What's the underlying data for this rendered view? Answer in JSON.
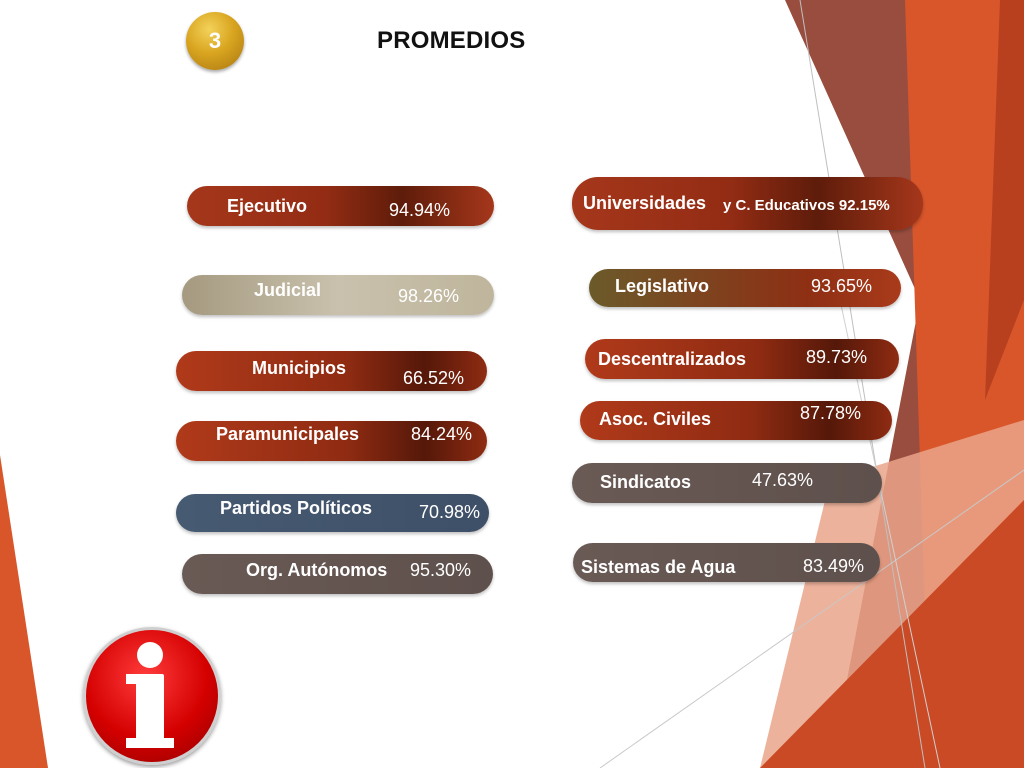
{
  "slide": {
    "number": "3",
    "title": "PROMEDIOS"
  },
  "left_column": [
    {
      "label": "Ejecutivo",
      "value": "94.94%"
    },
    {
      "label": "Judicial",
      "value": "98.26%"
    },
    {
      "label": "Municipios",
      "value": "66.52%"
    },
    {
      "label": "Paramunicipales",
      "value": "84.24%"
    },
    {
      "label": "Partidos Políticos",
      "value": "70.98%"
    },
    {
      "label": "Org. Autónomos",
      "value": "95.30%"
    }
  ],
  "right_column": [
    {
      "label": "Universidades",
      "label_suffix": "y C. Educativos 92.15%"
    },
    {
      "label": "Legislativo",
      "value": "93.65%"
    },
    {
      "label": "Descentralizados",
      "value": "89.73%"
    },
    {
      "label": "Asoc. Civiles",
      "value": "87.78%"
    },
    {
      "label": "Sindicatos",
      "value": "47.63%"
    },
    {
      "label": "Sistemas de Agua",
      "value": "83.49%"
    }
  ],
  "icons": {
    "info": "info-icon",
    "badge": "number-badge"
  },
  "colors": {
    "accent": "#d9562b",
    "pill_red": "#932c14",
    "pill_tan": "#c9c1ad",
    "pill_slate": "#465a72",
    "pill_grey": "#5e504c",
    "badge_gold": "#d9a520",
    "info_red": "#d40000"
  }
}
